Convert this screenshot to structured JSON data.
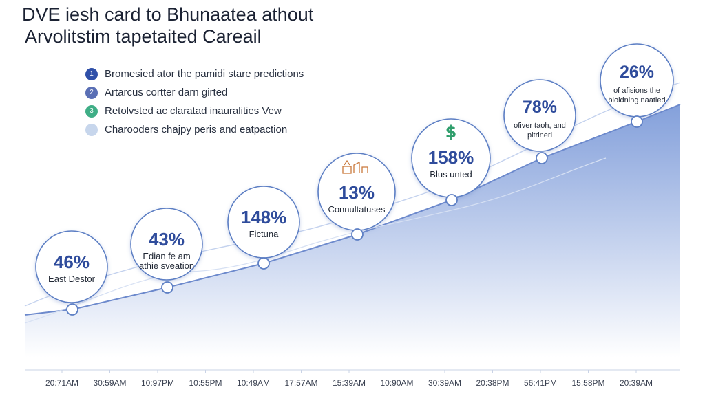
{
  "title": {
    "line1": "DVE iesh card to Bhunaatea athout",
    "line2": "Arvolitstim tapetaited Careail"
  },
  "legend": [
    {
      "label": "Bromesied ator the pamidi stare predictions",
      "marker": "1",
      "color": "#2f4fa8"
    },
    {
      "label": "Artarcus cortter darn girted",
      "marker": "2",
      "color": "#5a6fb5"
    },
    {
      "label": "Retolvsted ac claratad inauralities Vew",
      "marker": "3",
      "color": "#3fae86"
    },
    {
      "label": "Charooders chajpy peris and eatpaction",
      "marker": "",
      "color": "#c7d6ec"
    }
  ],
  "colors": {
    "area_top": "#7d9bd9",
    "area_bottom": "#ffffff",
    "line": "#6c89cc",
    "bubble_border": "#5d7fc4",
    "value_text": "#2f4c9c",
    "icon_green": "#2f9e6c",
    "icon_orange": "#c9783b"
  },
  "chart_data": {
    "type": "area",
    "title": "DVE iesh card to Bhunaatea athout Arvolitstim tapetaited Careail",
    "xlabel": "",
    "ylabel": "",
    "x": [
      "20:71AM",
      "30:59AM",
      "10:97PM",
      "10:55PM",
      "10:49AM",
      "17:57AM",
      "15:39AM",
      "10:90AM",
      "30:39AM",
      "20:38PM",
      "56:41PM",
      "15:58PM",
      "20:39AM"
    ],
    "grid": false,
    "legend_position": "top-left",
    "points": [
      {
        "x": "20:71AM",
        "value": "46%",
        "label": "East Destor"
      },
      {
        "x": "10:97PM",
        "value": "43%",
        "label": "Edian fe am athie sveation"
      },
      {
        "x": "10:49AM",
        "value": "148%",
        "label": "Fictuna"
      },
      {
        "x": "15:39AM",
        "value": "13%",
        "label": "Connultatuses",
        "icon": "chart-icon"
      },
      {
        "x": "30:39AM",
        "value": "158%",
        "label": "Blus unted",
        "icon": "dollar-icon"
      },
      {
        "x": "20:38PM",
        "value": "78%",
        "label": "ofiver taoh, and pitrinerl"
      },
      {
        "x": "15:58PM",
        "value": "26%",
        "label": "of afisions the bioidning naatied"
      }
    ]
  }
}
